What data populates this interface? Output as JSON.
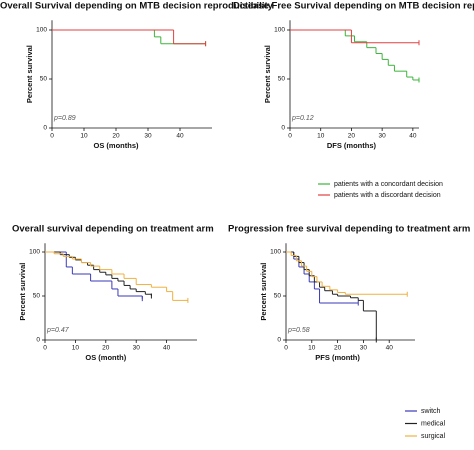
{
  "chart_data": [
    {
      "type": "step",
      "title": "Overall Survival depending on MTB  decision reproductibility",
      "xlabel": "OS (months)",
      "ylabel": "Percent survival",
      "annotation": "p=0.89",
      "xlim": [
        0,
        50
      ],
      "ylim": [
        0,
        110
      ],
      "xticks": [
        0,
        10,
        20,
        30,
        40
      ],
      "yticks": [
        0,
        50,
        100
      ],
      "series": [
        {
          "color": "#3cb43c",
          "x": [
            0,
            32,
            34,
            48
          ],
          "values": [
            100,
            93,
            86,
            86
          ]
        },
        {
          "color": "#e04040",
          "x": [
            0,
            38,
            48
          ],
          "values": [
            100,
            86,
            86
          ]
        }
      ]
    },
    {
      "type": "step",
      "title": "Disease Free Survival depending on MTB  decision reproductibility",
      "xlabel": "DFS (months)",
      "ylabel": "Percent survival",
      "annotation": "p=0.12",
      "xlim": [
        0,
        42
      ],
      "ylim": [
        0,
        110
      ],
      "xticks": [
        0,
        10,
        20,
        30,
        40
      ],
      "yticks": [
        0,
        50,
        100
      ],
      "series": [
        {
          "name": "patients with a concordant decision",
          "color": "#3cb43c",
          "x": [
            0,
            18,
            21,
            25,
            28,
            30,
            32,
            34,
            38,
            40,
            42
          ],
          "values": [
            100,
            94,
            88,
            82,
            76,
            70,
            64,
            58,
            52,
            49,
            49
          ]
        },
        {
          "name": "patients with a discordant decision",
          "color": "#e04040",
          "x": [
            0,
            20,
            42
          ],
          "values": [
            100,
            87,
            87
          ]
        }
      ]
    },
    {
      "type": "step",
      "title": "Overall survival depending on treatment arm",
      "xlabel": "OS (month)",
      "ylabel": "Percent survival",
      "annotation": "p=0.47",
      "xlim": [
        0,
        50
      ],
      "ylim": [
        0,
        110
      ],
      "xticks": [
        0,
        10,
        20,
        30,
        40
      ],
      "yticks": [
        0,
        50,
        100
      ],
      "series": [
        {
          "color": "#3a3ab8",
          "x": [
            0,
            7,
            9,
            15,
            22,
            24,
            32
          ],
          "values": [
            100,
            83,
            75,
            67,
            58,
            50,
            47
          ]
        },
        {
          "color": "#222222",
          "x": [
            0,
            5,
            8,
            10,
            12,
            14,
            16,
            18,
            20,
            22,
            24,
            26,
            28,
            30,
            33,
            35
          ],
          "values": [
            100,
            97,
            94,
            91,
            88,
            85,
            80,
            77,
            74,
            70,
            67,
            62,
            58,
            55,
            52,
            50
          ]
        },
        {
          "color": "#f0b040",
          "x": [
            0,
            3,
            6,
            9,
            12,
            15,
            18,
            22,
            26,
            30,
            35,
            40,
            42,
            47
          ],
          "values": [
            100,
            98,
            95,
            92,
            88,
            84,
            80,
            75,
            70,
            63,
            60,
            55,
            45,
            45
          ]
        }
      ]
    },
    {
      "type": "step",
      "title": "Progression free survival depending to treatment arm",
      "xlabel": "PFS (month)",
      "ylabel": "Percent survival",
      "annotation": "p=0.58",
      "xlim": [
        0,
        50
      ],
      "ylim": [
        0,
        110
      ],
      "xticks": [
        0,
        10,
        20,
        30,
        40
      ],
      "yticks": [
        0,
        50,
        100
      ],
      "series": [
        {
          "name": "switch",
          "color": "#3a3ab8",
          "x": [
            0,
            3,
            5,
            7,
            9,
            11,
            13,
            28
          ],
          "values": [
            100,
            92,
            83,
            75,
            66,
            58,
            42,
            42
          ]
        },
        {
          "name": "medical",
          "color": "#222222",
          "x": [
            0,
            3,
            5,
            7,
            9,
            11,
            13,
            15,
            18,
            20,
            25,
            28,
            30,
            35
          ],
          "values": [
            100,
            95,
            88,
            80,
            73,
            66,
            60,
            56,
            52,
            50,
            48,
            45,
            33,
            0
          ]
        },
        {
          "name": "surgical",
          "color": "#f0b040",
          "x": [
            0,
            2,
            4,
            6,
            8,
            10,
            12,
            14,
            17,
            20,
            23,
            47
          ],
          "values": [
            100,
            96,
            90,
            84,
            78,
            72,
            66,
            61,
            57,
            54,
            52,
            52
          ]
        }
      ]
    }
  ]
}
